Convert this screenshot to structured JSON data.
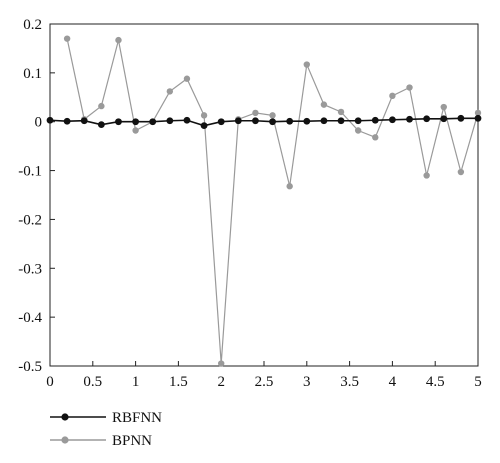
{
  "chart_data": {
    "type": "line",
    "title": "",
    "xlabel": "",
    "ylabel": "",
    "xlim": [
      0,
      5
    ],
    "ylim": [
      -0.5,
      0.2
    ],
    "xticks": [
      0,
      0.5,
      1,
      1.5,
      2,
      2.5,
      3,
      3.5,
      4,
      4.5,
      5
    ],
    "xtick_labels": [
      "0",
      "0.5",
      "1",
      "1.5",
      "2",
      "2.5",
      "3",
      "3.5",
      "4",
      "4.5",
      "5"
    ],
    "yticks": [
      0.2,
      0.1,
      0,
      -0.1,
      -0.2,
      -0.3,
      -0.4,
      -0.5
    ],
    "ytick_labels": [
      "0.2",
      "0.1",
      "0",
      "-0.1",
      "-0.2",
      "-0.3",
      "-0.4",
      "-0.5"
    ],
    "grid": false,
    "legend_position": "bottom-left",
    "series": [
      {
        "name": "RBFNN",
        "color": "#111111",
        "marker": "filled-circle",
        "x": [
          0,
          0.2,
          0.4,
          0.6,
          0.8,
          1.0,
          1.2,
          1.4,
          1.6,
          1.8,
          2.0,
          2.2,
          2.4,
          2.6,
          2.8,
          3.0,
          3.2,
          3.4,
          3.6,
          3.8,
          4.0,
          4.2,
          4.4,
          4.6,
          4.8,
          5.0
        ],
        "y": [
          0.003,
          0.001,
          0.002,
          -0.006,
          0.0,
          0.0,
          0.0,
          0.002,
          0.003,
          -0.008,
          0.0,
          0.002,
          0.002,
          0.0,
          0.001,
          0.001,
          0.002,
          0.002,
          0.002,
          0.003,
          0.004,
          0.005,
          0.006,
          0.006,
          0.007,
          0.007
        ]
      },
      {
        "name": "BPNN",
        "color": "#9a9a9a",
        "marker": "filled-circle",
        "x": [
          0.2,
          0.4,
          0.6,
          0.8,
          1.0,
          1.2,
          1.4,
          1.6,
          1.8,
          2.0,
          2.2,
          2.4,
          2.6,
          2.8,
          3.0,
          3.2,
          3.4,
          3.6,
          3.8,
          4.0,
          4.2,
          4.4,
          4.6,
          4.8,
          5.0
        ],
        "y": [
          0.17,
          0.005,
          0.032,
          0.167,
          -0.018,
          0.0,
          0.062,
          0.088,
          0.013,
          -0.495,
          0.005,
          0.018,
          0.013,
          -0.132,
          0.117,
          0.035,
          0.02,
          -0.018,
          -0.032,
          0.053,
          0.07,
          -0.11,
          0.03,
          -0.103,
          0.018
        ]
      }
    ]
  }
}
